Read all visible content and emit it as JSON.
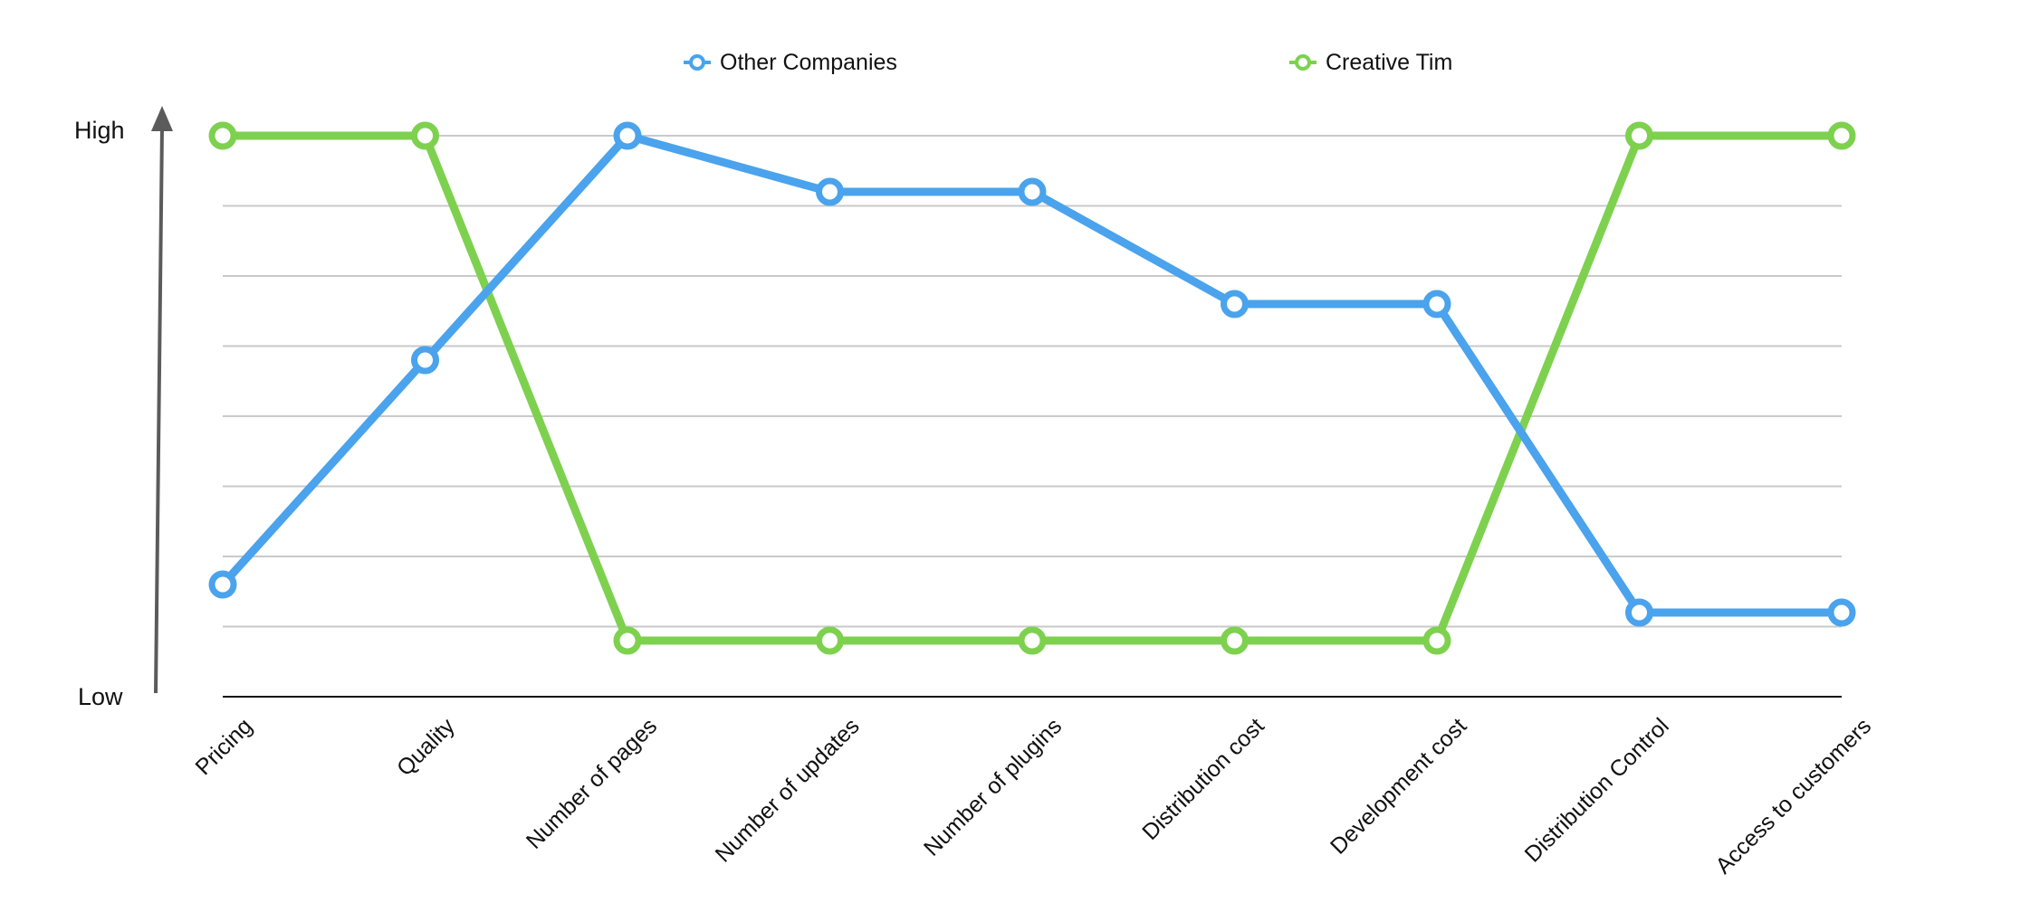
{
  "chart_data": {
    "type": "line",
    "title": "",
    "xlabel": "",
    "ylabel": "",
    "y_axis_labels": {
      "high": "High",
      "low": "Low"
    },
    "ylim": [
      0,
      10
    ],
    "grid": true,
    "legend_position": "top",
    "categories": [
      "Pricing",
      "Quality",
      "Number of pages",
      "Number of updates",
      "Number of plugins",
      "Distribution cost",
      "Development cost",
      "Distribution Control",
      "Access to customers"
    ],
    "series": [
      {
        "name": "Other Companies",
        "color": "#4aa3ec",
        "values": [
          2.0,
          6.0,
          10.0,
          9.0,
          9.0,
          7.0,
          7.0,
          1.5,
          1.5
        ]
      },
      {
        "name": "Creative Tim",
        "color": "#7ed14f",
        "values": [
          10.0,
          10.0,
          1.0,
          1.0,
          1.0,
          1.0,
          1.0,
          10.0,
          10.0
        ]
      }
    ]
  }
}
